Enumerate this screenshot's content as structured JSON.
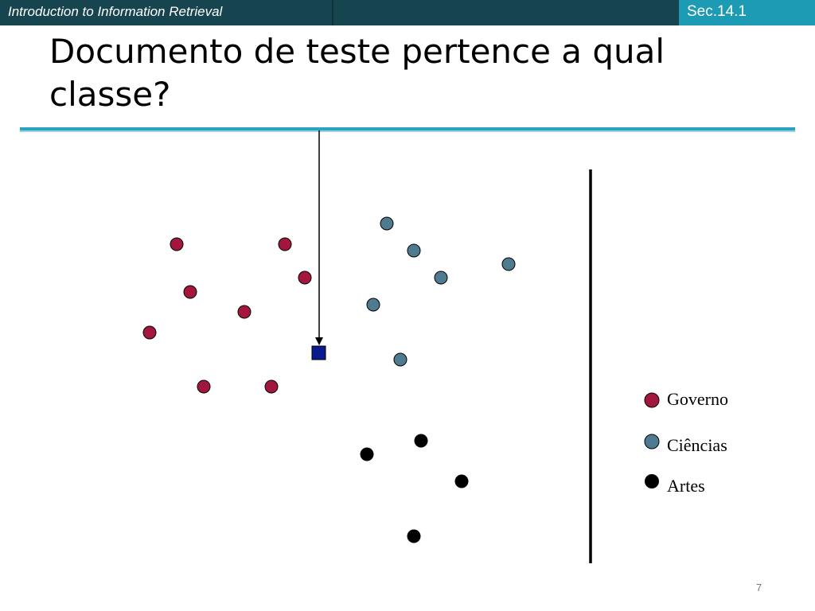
{
  "header": {
    "course_title": "Introduction to Information Retrieval",
    "section": "Sec.14.1"
  },
  "slide": {
    "title": "Documento de teste pertence a qual classe?",
    "page_number": "7"
  },
  "colors": {
    "header_bg": "#17454f",
    "section_bg": "#1d9ab4",
    "rule": "#2aa3c2",
    "governo": "#a3173e",
    "ciencias": "#4f7b91",
    "artes": "#000000",
    "test_doc": "#0a1a8c"
  },
  "legend": [
    {
      "label": "Governo",
      "color": "#a3173e"
    },
    {
      "label": "Ciências",
      "color": "#4f7b91"
    },
    {
      "label": "Artes",
      "color": "#000000"
    }
  ]
}
